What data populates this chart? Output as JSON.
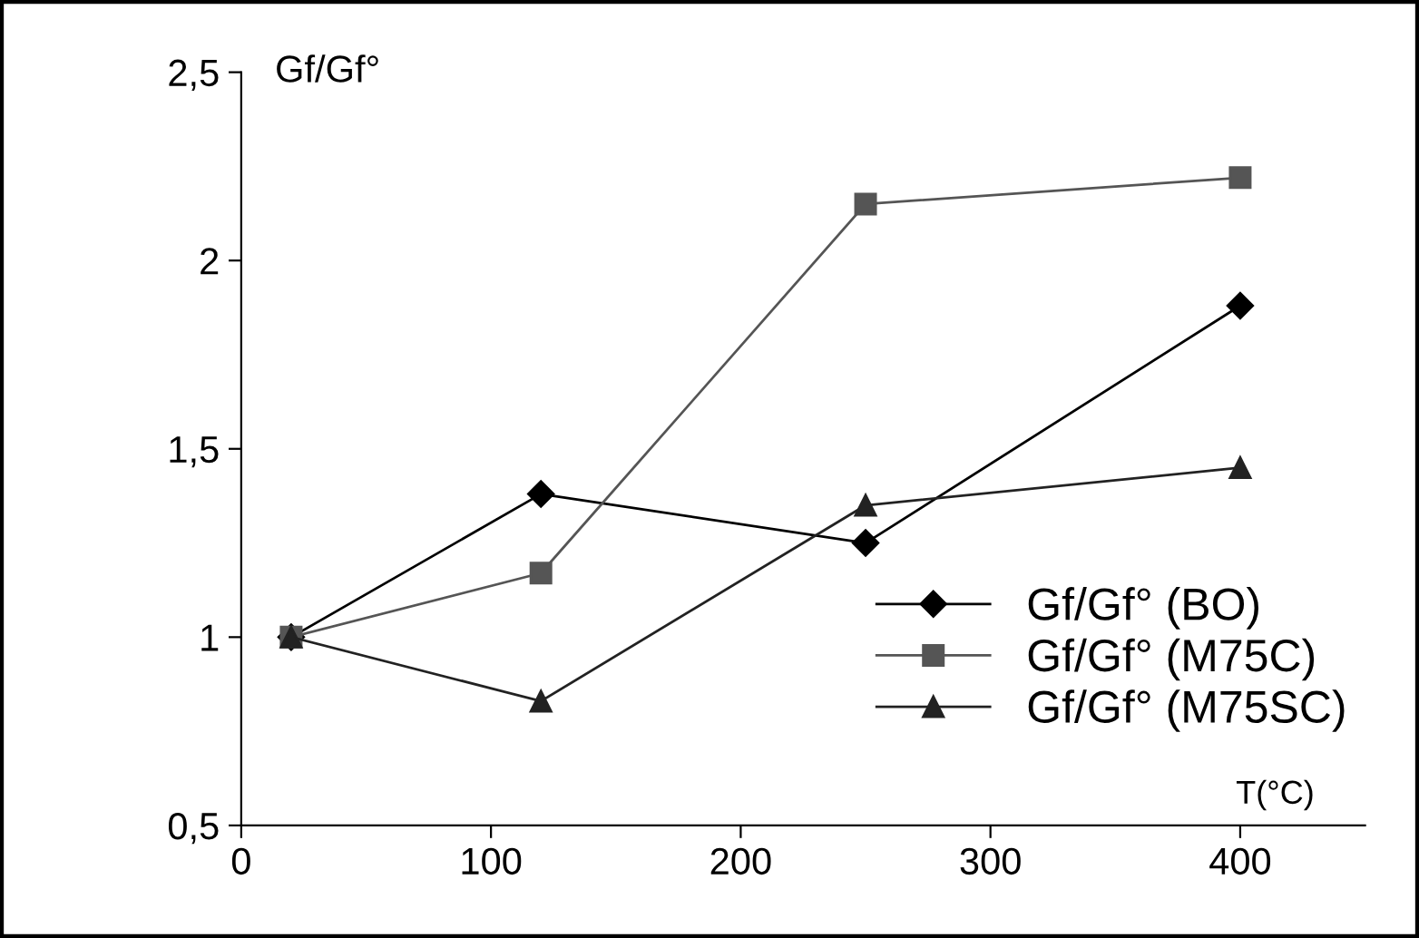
{
  "chart_data": {
    "type": "line",
    "ylabel": "Gf/Gf°",
    "xlabel": "T(°C)",
    "x": [
      20,
      120,
      250,
      400
    ],
    "series": [
      {
        "name": "Gf/Gf° (BO)",
        "color": "#000000",
        "marker": "diamond",
        "values": [
          1.0,
          1.38,
          1.25,
          1.88
        ]
      },
      {
        "name": "Gf/Gf° (M75C)",
        "color": "#555555",
        "marker": "square",
        "values": [
          1.0,
          1.17,
          2.15,
          2.22
        ]
      },
      {
        "name": "Gf/Gf° (M75SC)",
        "color": "#222222",
        "marker": "triangle",
        "values": [
          1.0,
          0.83,
          1.35,
          1.45
        ]
      }
    ],
    "xlim": [
      0,
      450
    ],
    "xticks": [
      0,
      100,
      200,
      300,
      400
    ],
    "ylim": [
      0.5,
      2.5
    ],
    "yticks": [
      {
        "value": 0.5,
        "label": "0,5"
      },
      {
        "value": 1,
        "label": "1"
      },
      {
        "value": 1.5,
        "label": "1,5"
      },
      {
        "value": 2,
        "label": "2"
      },
      {
        "value": 2.5,
        "label": "2,5"
      }
    ],
    "grid": false,
    "legend": "bottom right",
    "line_style": "solid"
  }
}
